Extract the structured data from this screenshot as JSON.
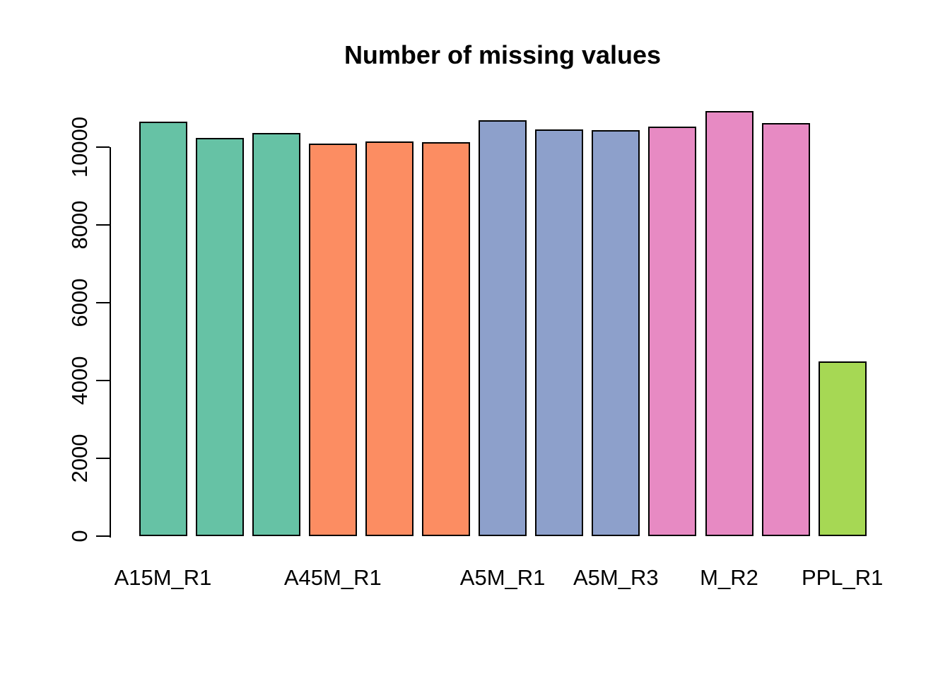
{
  "chart_data": {
    "type": "bar",
    "title": "Number of missing values",
    "values": [
      10650,
      10230,
      10360,
      10100,
      10140,
      10120,
      10700,
      10455,
      10435,
      10530,
      10925,
      10620,
      4500
    ],
    "bar_colors": [
      "#66C2A5",
      "#66C2A5",
      "#66C2A5",
      "#FC8D62",
      "#FC8D62",
      "#FC8D62",
      "#8DA0CB",
      "#8DA0CB",
      "#8DA0CB",
      "#E78AC3",
      "#E78AC3",
      "#E78AC3",
      "#A6D854"
    ],
    "x_tick_labels": [
      {
        "bar_index": 0,
        "label": "A15M_R1"
      },
      {
        "bar_index": 3,
        "label": "A45M_R1"
      },
      {
        "bar_index": 6,
        "label": "A5M_R1"
      },
      {
        "bar_index": 8,
        "label": "A5M_R3"
      },
      {
        "bar_index": 10,
        "label": "M_R2"
      },
      {
        "bar_index": 12,
        "label": "PPL_R1"
      }
    ],
    "y_ticks": [
      0,
      2000,
      4000,
      6000,
      8000,
      10000
    ],
    "y_tick_labels": [
      "0",
      "2000",
      "4000",
      "6000",
      "8000",
      "10000"
    ],
    "axis_range": [
      0,
      10000
    ],
    "ylim": [
      0,
      11000
    ],
    "xlabel": "",
    "ylabel": "",
    "grid": false,
    "legend": false,
    "palette": {
      "green": "#66C2A5",
      "orange": "#FC8D62",
      "blue": "#8DA0CB",
      "pink": "#E78AC3",
      "yellow_green": "#A6D854"
    },
    "bar_border_color": "#000000",
    "text_color": "#000000",
    "background_color": "#ffffff"
  }
}
